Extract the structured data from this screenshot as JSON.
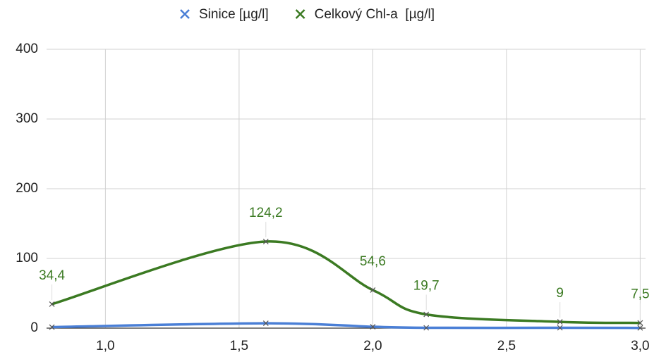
{
  "chart_data": {
    "type": "line",
    "series": [
      {
        "name": "Sinice [µg/l]",
        "color": "#4a7fd6",
        "x": [
          0.8,
          1.6,
          2.0,
          2.2,
          2.7,
          3.0
        ],
        "values": [
          1.5,
          7,
          2,
          0.5,
          0.5,
          0.3
        ]
      },
      {
        "name": "Celkový Chl-a  [µg/l]",
        "color": "#3b7a22",
        "x": [
          0.8,
          1.6,
          2.0,
          2.2,
          2.7,
          3.0
        ],
        "values": [
          34.4,
          124.2,
          54.6,
          19.7,
          9,
          7.5
        ],
        "value_labels": [
          "34,4",
          "124,2",
          "54,6",
          "19,7",
          "9",
          "7,5"
        ]
      }
    ],
    "xlim": [
      0.78,
      3.02
    ],
    "xticks": [
      {
        "value": 1.0,
        "label": "1,0"
      },
      {
        "value": 1.5,
        "label": "1,5"
      },
      {
        "value": 2.0,
        "label": "2,0"
      },
      {
        "value": 2.5,
        "label": "2,5"
      },
      {
        "value": 3.0,
        "label": "3,0"
      }
    ],
    "ylim": [
      0,
      400
    ],
    "yticks": [
      0,
      100,
      200,
      300,
      400
    ],
    "grid": true,
    "legend": "top"
  }
}
